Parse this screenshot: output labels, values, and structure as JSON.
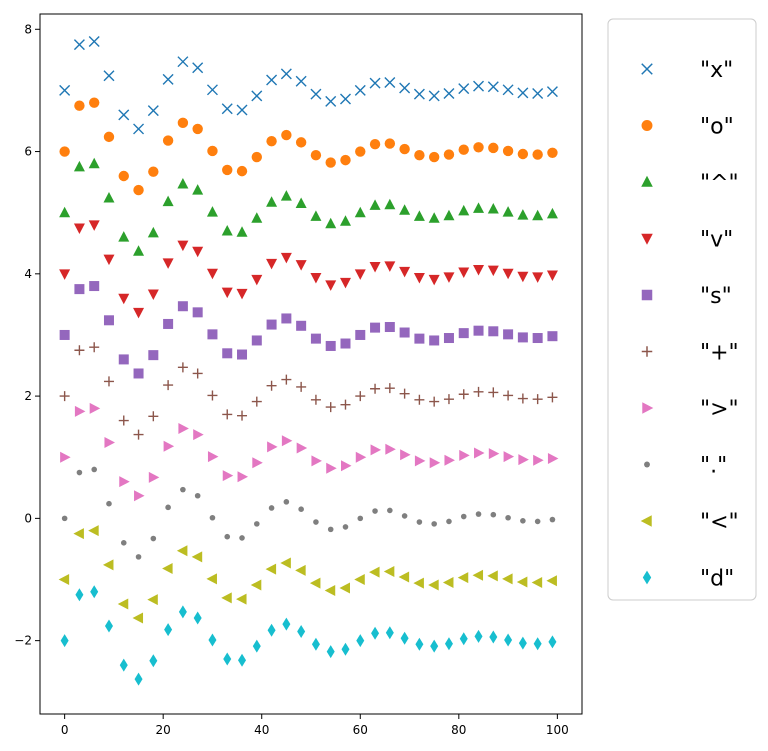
{
  "chart_data": {
    "type": "scatter",
    "title": "",
    "xlabel": "",
    "ylabel": "",
    "xlim": [
      -5,
      105
    ],
    "ylim": [
      -3.2,
      8.25
    ],
    "x_ticks": [
      0,
      20,
      40,
      60,
      80,
      100
    ],
    "y_ticks": [
      -2,
      0,
      2,
      4,
      6,
      8
    ],
    "x_tick_labels": [
      "0",
      "20",
      "40",
      "60",
      "80",
      "100"
    ],
    "y_tick_labels": [
      "−2",
      "0",
      "2",
      "4",
      "6",
      "8"
    ],
    "grid": false,
    "legend_placement": "right",
    "x": [
      0,
      3,
      6,
      9,
      12,
      15,
      18,
      21,
      24,
      27,
      30,
      33,
      36,
      39,
      42,
      45,
      48,
      51,
      54,
      57,
      60,
      63,
      66,
      69,
      72,
      75,
      78,
      81,
      84,
      87,
      90,
      93,
      96,
      99
    ],
    "base_wave": [
      0.0,
      0.75,
      0.8,
      0.24,
      -0.4,
      -0.63,
      -0.33,
      0.18,
      0.47,
      0.37,
      0.01,
      -0.3,
      -0.32,
      -0.09,
      0.17,
      0.27,
      0.15,
      -0.06,
      -0.18,
      -0.14,
      0.0,
      0.12,
      0.13,
      0.04,
      -0.06,
      -0.09,
      -0.05,
      0.03,
      0.07,
      0.06,
      0.01,
      -0.04,
      -0.05,
      -0.02
    ],
    "series": [
      {
        "name": "\"x\"",
        "marker": "x",
        "offset": 7,
        "color": "#1f77b4"
      },
      {
        "name": "\"o\"",
        "marker": "o",
        "offset": 6,
        "color": "#ff7f0e"
      },
      {
        "name": "\"^\"",
        "marker": "^",
        "offset": 5,
        "color": "#2ca02c"
      },
      {
        "name": "\"v\"",
        "marker": "v",
        "offset": 4,
        "color": "#d62728"
      },
      {
        "name": "\"s\"",
        "marker": "s",
        "offset": 3,
        "color": "#9467bd"
      },
      {
        "name": "\"+\"",
        "marker": "+",
        "offset": 2,
        "color": "#8c564b"
      },
      {
        "name": "\">\"",
        "marker": ">",
        "offset": 1,
        "color": "#e377c2"
      },
      {
        "name": "\".\"",
        "marker": ".",
        "offset": 0,
        "color": "#7f7f7f"
      },
      {
        "name": "\"<\"",
        "marker": "<",
        "offset": -1,
        "color": "#bcbd22"
      },
      {
        "name": "\"d\"",
        "marker": "d",
        "offset": -2,
        "color": "#17becf"
      }
    ]
  }
}
